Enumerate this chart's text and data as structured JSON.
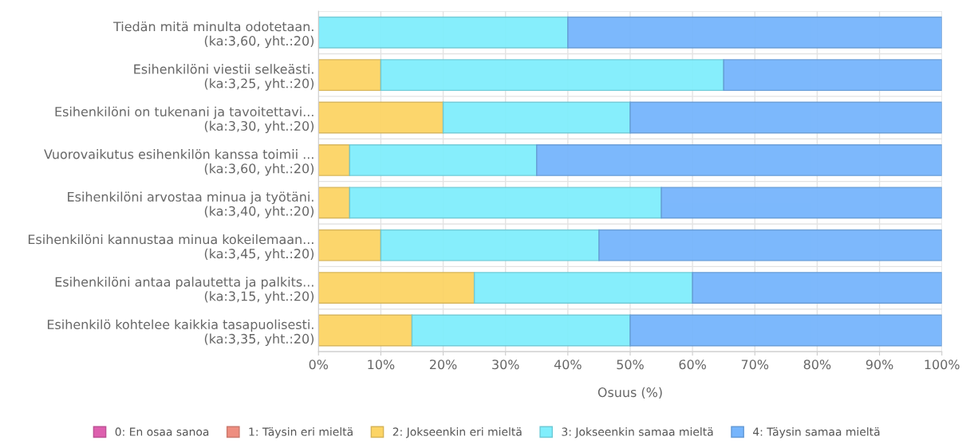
{
  "chart_data": {
    "type": "bar",
    "orientation": "horizontal",
    "stacked": true,
    "xlabel": "Osuus (%)",
    "categories": [
      "Tiedän mitä minulta odotetaan.\n(ka:3,60, yht.:20)",
      "Esihenkilöni viestii selkeästi.\n(ka:3,25, yht.:20)",
      "Esihenkilöni on tukenani ja tavoitettavi...\n(ka:3,30, yht.:20)",
      "Vuorovaikutus esihenkilön kanssa toimii ...\n(ka:3,60, yht.:20)",
      "Esihenkilöni arvostaa minua ja työtäni.\n(ka:3,40, yht.:20)",
      "Esihenkilöni kannustaa minua kokeilemaan...\n(ka:3,45, yht.:20)",
      "Esihenkilöni antaa palautetta ja palkits...\n(ka:3,15, yht.:20)",
      "Esihenkilö kohtelee kaikkia tasapuolisesti.\n(ka:3,35, yht.:20)"
    ],
    "series": [
      {
        "name": "0: En osaa sanoa",
        "color": "#dd5fae",
        "values": [
          0,
          0,
          0,
          0,
          0,
          0,
          0,
          0
        ]
      },
      {
        "name": "1: Täysin eri mieltä",
        "color": "#ee8e80",
        "values": [
          0,
          0,
          0,
          0,
          0,
          0,
          0,
          0
        ]
      },
      {
        "name": "2: Jokseenkin eri mieltä",
        "color": "#fcd465",
        "values": [
          0,
          10,
          20,
          5,
          5,
          10,
          25,
          15
        ]
      },
      {
        "name": "3: Jokseenkin samaa mieltä",
        "color": "#80eefc",
        "values": [
          40,
          55,
          30,
          30,
          50,
          35,
          35,
          35
        ]
      },
      {
        "name": "4: Täysin samaa mieltä",
        "color": "#76b5fc",
        "values": [
          60,
          35,
          50,
          65,
          45,
          55,
          40,
          50
        ]
      }
    ],
    "xlim": [
      0,
      100
    ],
    "xticks": [
      {
        "value": 0,
        "label": "0%"
      },
      {
        "value": 10,
        "label": "10%"
      },
      {
        "value": 20,
        "label": "20%"
      },
      {
        "value": 30,
        "label": "30%"
      },
      {
        "value": 40,
        "label": "40%"
      },
      {
        "value": 50,
        "label": "50%"
      },
      {
        "value": 60,
        "label": "60%"
      },
      {
        "value": 70,
        "label": "70%"
      },
      {
        "value": 80,
        "label": "80%"
      },
      {
        "value": 90,
        "label": "90%"
      },
      {
        "value": 100,
        "label": "100%"
      }
    ],
    "grid": true,
    "legend": "bottom"
  }
}
